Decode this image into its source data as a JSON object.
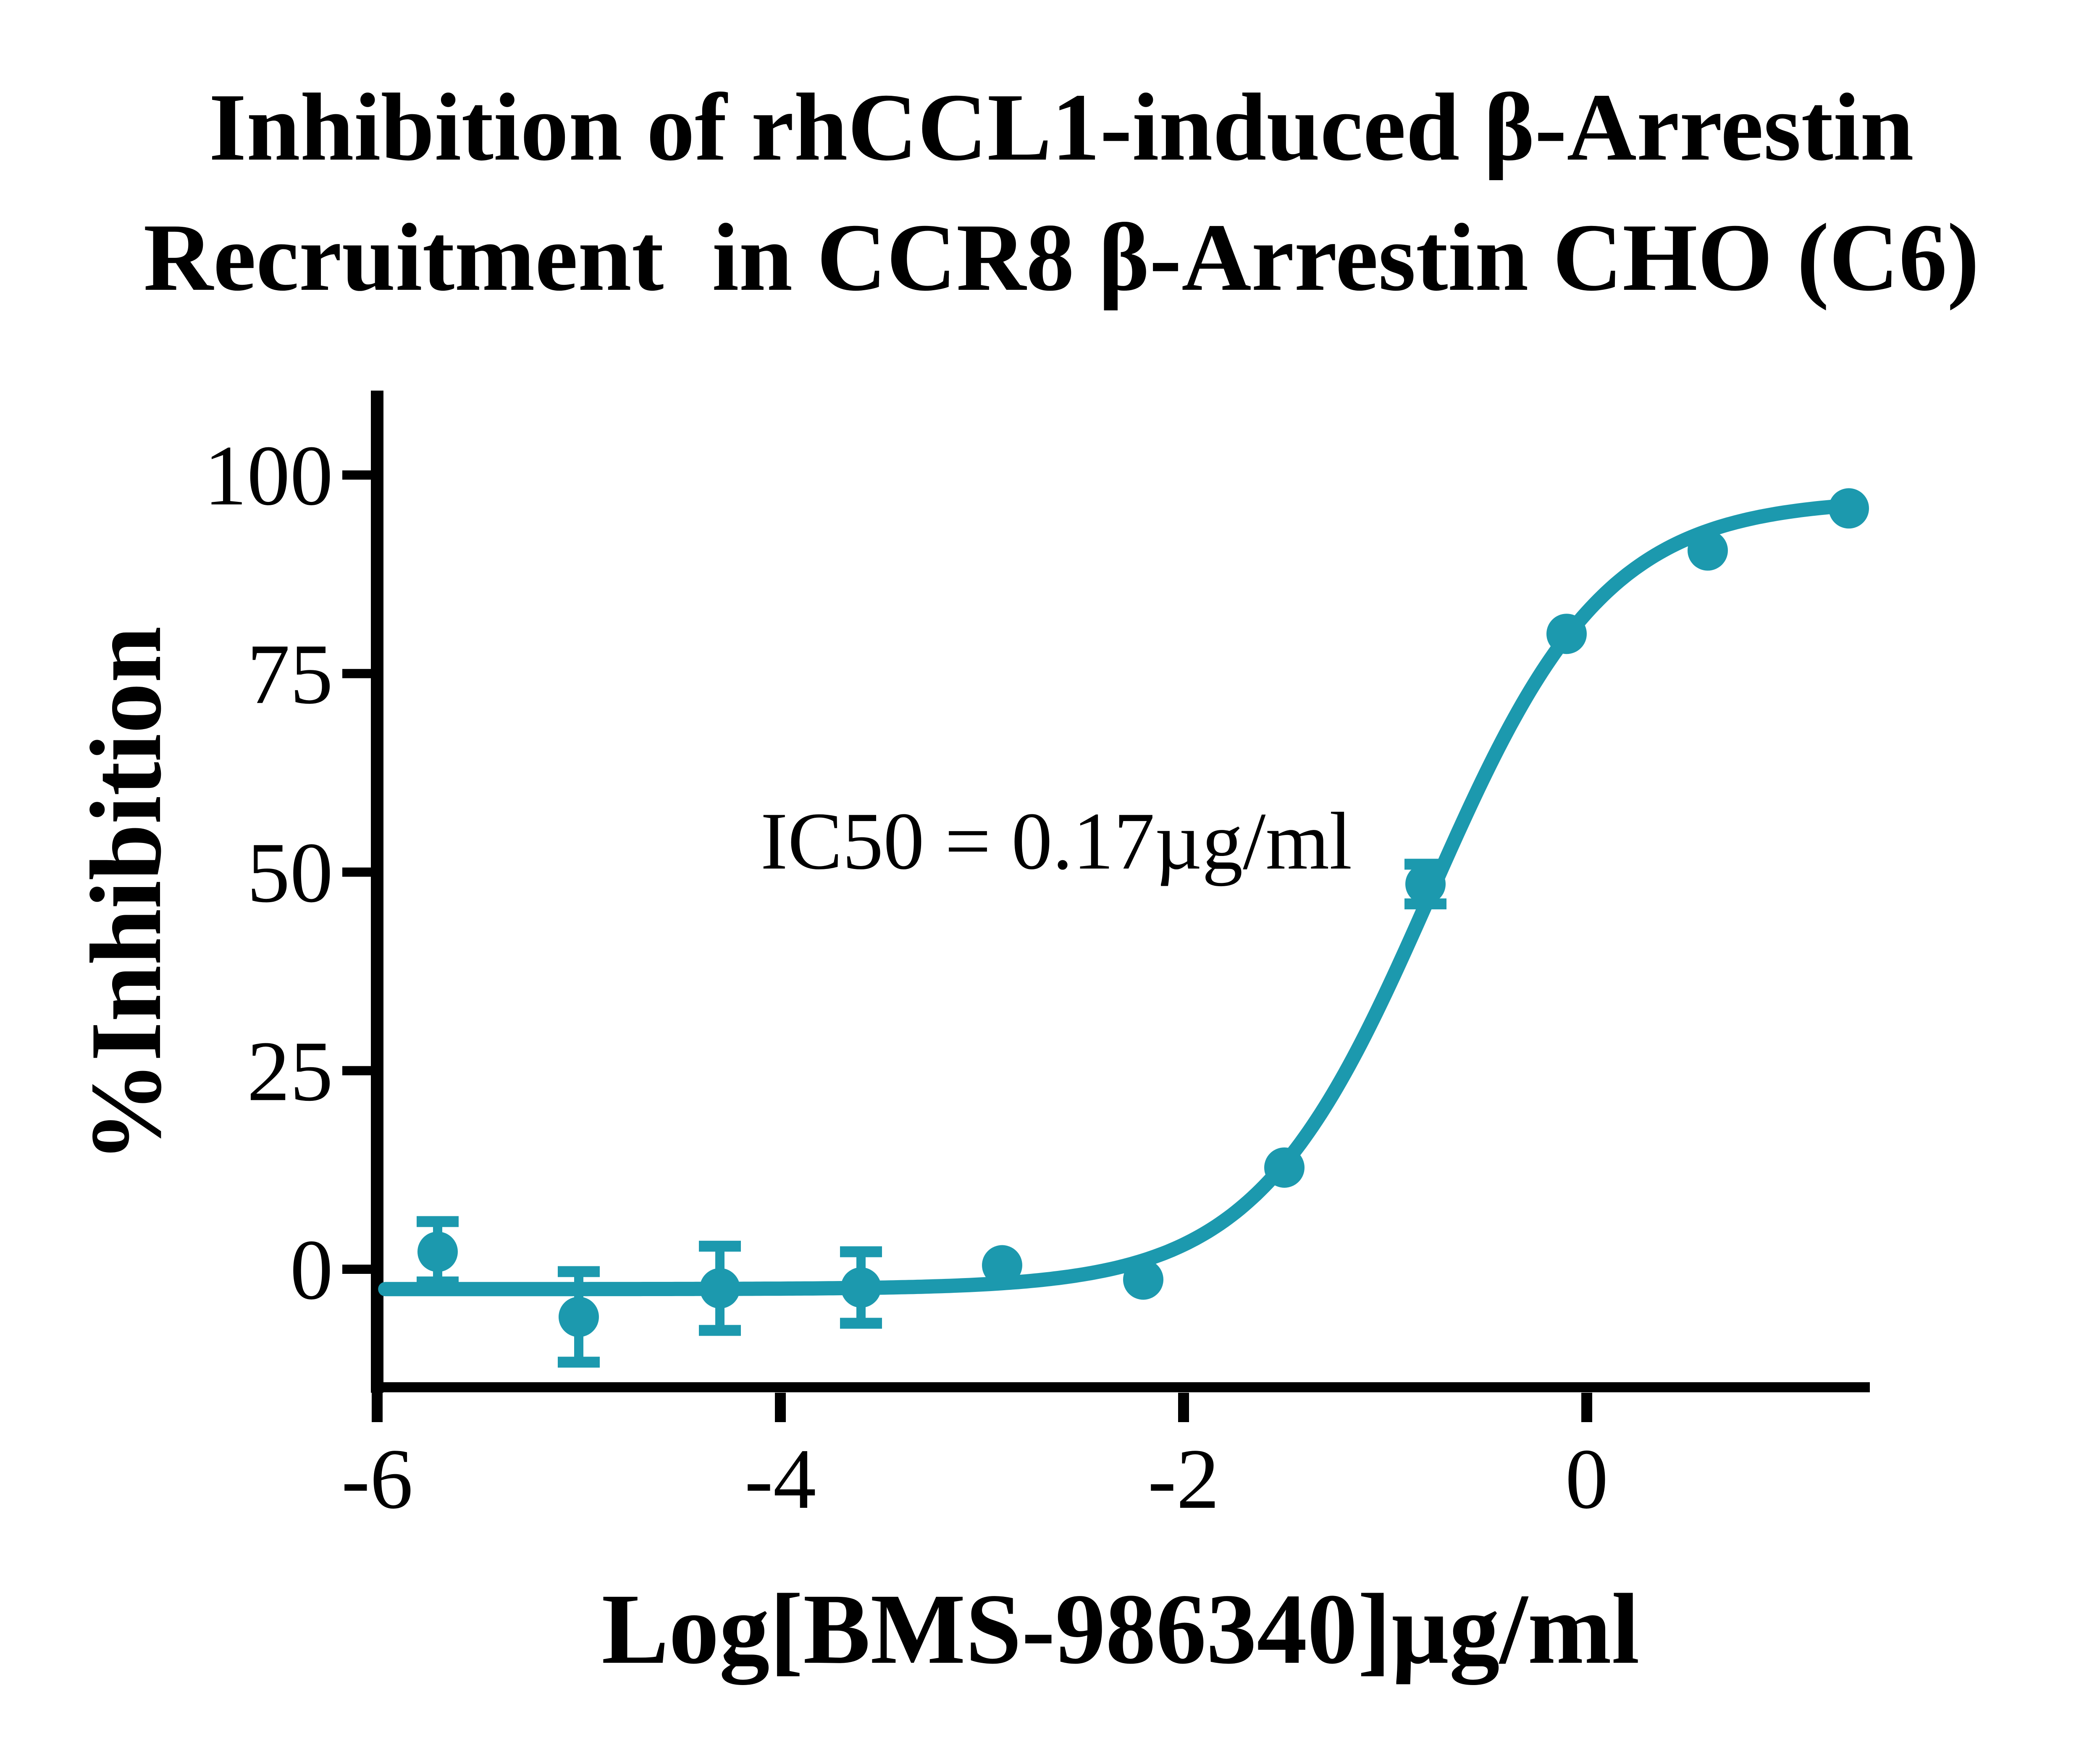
{
  "colors": {
    "series": "#1C99AE",
    "axis": "#000000",
    "background": "#FFFFFF"
  },
  "chart_data": {
    "type": "scatter",
    "title": "Inhibition of rhCCL1-induced β-Arrestin\nRecruitment  in CCR8 β-Arrestin CHO (C6)",
    "xlabel": "Log[BMS-986340]µg/ml",
    "ylabel": "%Inhibition",
    "annotation": "IC50 = 0.17µg/ml",
    "ic50_ug_per_ml": 0.17,
    "xlim": [
      -6,
      1.4
    ],
    "ylim": [
      -15.5,
      110.6
    ],
    "xticks": [
      -6,
      -4,
      -2,
      0
    ],
    "yticks": [
      0,
      25,
      50,
      75,
      100
    ],
    "grid": false,
    "legend": "none",
    "series": [
      {
        "name": "BMS-986340",
        "marker": "circle",
        "points": [
          {
            "x": -5.7,
            "y": 2.2,
            "err": 3.8
          },
          {
            "x": -5.0,
            "y": -6.0,
            "err": 5.7
          },
          {
            "x": -4.3,
            "y": -2.4,
            "err": 5.3
          },
          {
            "x": -3.6,
            "y": -2.3,
            "err": 4.5
          },
          {
            "x": -2.9,
            "y": 0.5,
            "err": null
          },
          {
            "x": -2.2,
            "y": -1.3,
            "err": null
          },
          {
            "x": -1.5,
            "y": 12.8,
            "err": null
          },
          {
            "x": -0.8,
            "y": 48.5,
            "err": 2.5
          },
          {
            "x": -0.1,
            "y": 80.0,
            "err": null
          },
          {
            "x": 0.6,
            "y": 90.5,
            "err": null
          },
          {
            "x": 1.3,
            "y": 95.8,
            "err": null
          }
        ]
      }
    ],
    "fit": {
      "model": "4PL-sigmoid",
      "bottom": -2.5,
      "top": 97,
      "log_ic50": -0.775,
      "hill": 1.0,
      "curve_x_start": -5.96,
      "curve_x_end": 1.3
    }
  }
}
